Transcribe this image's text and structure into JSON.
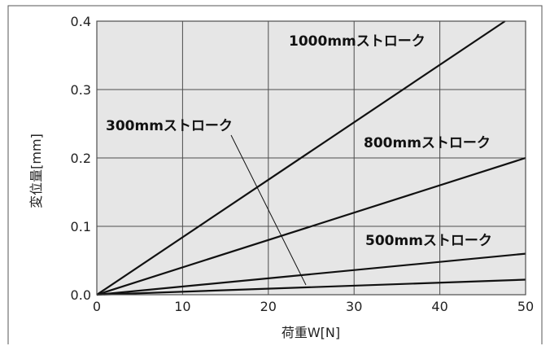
{
  "chart_data": {
    "type": "line",
    "xlabel": "荷重W[N]",
    "ylabel": "変位量[mm]",
    "xlim": [
      0,
      50
    ],
    "ylim": [
      0,
      0.4
    ],
    "xticks": [
      0,
      10,
      20,
      30,
      40,
      50
    ],
    "xtick_labels": [
      "0",
      "10",
      "20",
      "30",
      "40",
      "50"
    ],
    "yticks": [
      0,
      0.1,
      0.2,
      0.3,
      0.4
    ],
    "ytick_labels": [
      "0.0",
      "0.1",
      "0.2",
      "0.3",
      "0.4"
    ],
    "grid": true,
    "colors": {
      "background": "#e6e6e6",
      "grid": "#4d4d4d",
      "line": "#111111",
      "frame": "#555555"
    },
    "series": [
      {
        "name": "1000mmストローク",
        "x": [
          0,
          47.6
        ],
        "y": [
          0,
          0.4
        ]
      },
      {
        "name": "800mmストローク",
        "x": [
          0,
          50
        ],
        "y": [
          0,
          0.2
        ]
      },
      {
        "name": "500mmストローク",
        "x": [
          0,
          50
        ],
        "y": [
          0,
          0.06
        ]
      },
      {
        "name": "300mmストローク",
        "x": [
          0,
          50
        ],
        "y": [
          0,
          0.022
        ]
      }
    ]
  }
}
